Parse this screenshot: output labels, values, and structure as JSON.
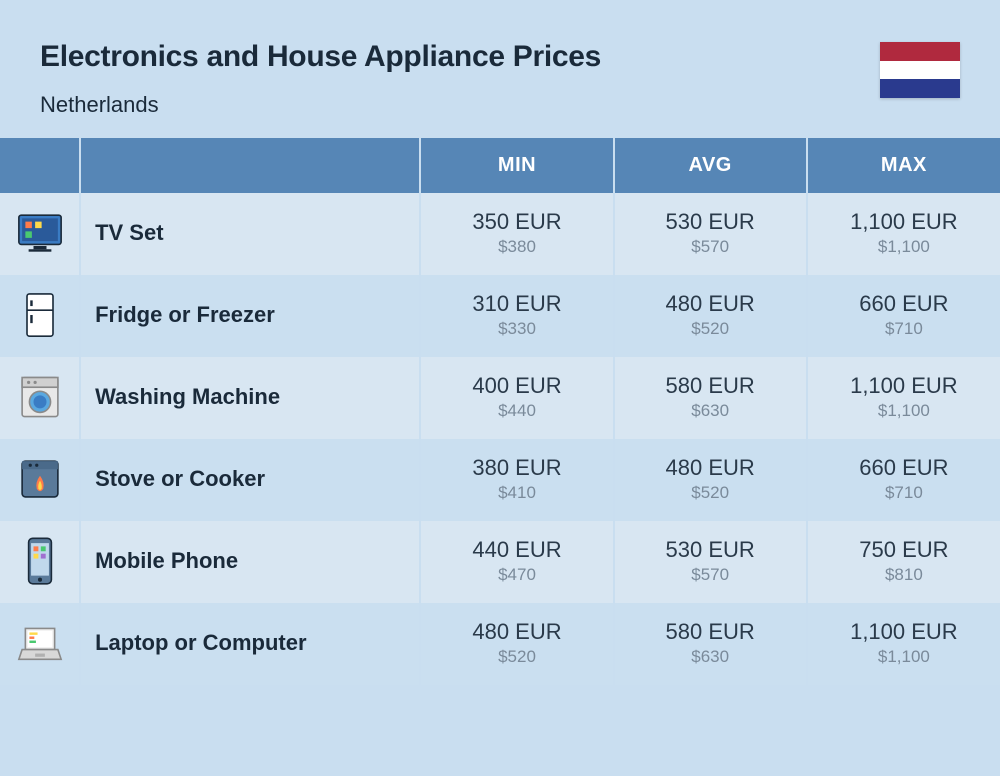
{
  "header": {
    "title": "Electronics and House Appliance Prices",
    "country": "Netherlands",
    "flag_colors": [
      "#b0293e",
      "#ffffff",
      "#2a3a8e"
    ]
  },
  "table": {
    "columns": [
      "",
      "",
      "MIN",
      "AVG",
      "MAX"
    ],
    "rows": [
      {
        "icon": "tv",
        "name": "TV Set",
        "min_eur": "350 EUR",
        "min_usd": "$380",
        "avg_eur": "530 EUR",
        "avg_usd": "$570",
        "max_eur": "1,100 EUR",
        "max_usd": "$1,100"
      },
      {
        "icon": "fridge",
        "name": "Fridge or Freezer",
        "min_eur": "310 EUR",
        "min_usd": "$330",
        "avg_eur": "480 EUR",
        "avg_usd": "$520",
        "max_eur": "660 EUR",
        "max_usd": "$710"
      },
      {
        "icon": "washer",
        "name": "Washing Machine",
        "min_eur": "400 EUR",
        "min_usd": "$440",
        "avg_eur": "580 EUR",
        "avg_usd": "$630",
        "max_eur": "1,100 EUR",
        "max_usd": "$1,100"
      },
      {
        "icon": "stove",
        "name": "Stove or Cooker",
        "min_eur": "380 EUR",
        "min_usd": "$410",
        "avg_eur": "480 EUR",
        "avg_usd": "$520",
        "max_eur": "660 EUR",
        "max_usd": "$710"
      },
      {
        "icon": "phone",
        "name": "Mobile Phone",
        "min_eur": "440 EUR",
        "min_usd": "$470",
        "avg_eur": "530 EUR",
        "avg_usd": "$570",
        "max_eur": "750 EUR",
        "max_usd": "$810"
      },
      {
        "icon": "laptop",
        "name": "Laptop or Computer",
        "min_eur": "480 EUR",
        "min_usd": "$520",
        "avg_eur": "580 EUR",
        "avg_usd": "$630",
        "max_eur": "1,100 EUR",
        "max_usd": "$1,100"
      }
    ],
    "colors": {
      "header_bg": "#5686b6",
      "header_text": "#ffffff",
      "row_odd": "#d8e6f2",
      "row_even": "#cadff0",
      "page_bg": "#c9def0",
      "text_primary": "#1a2a3a",
      "text_price": "#2a3a4a",
      "text_usd": "#7a8a9a"
    }
  }
}
